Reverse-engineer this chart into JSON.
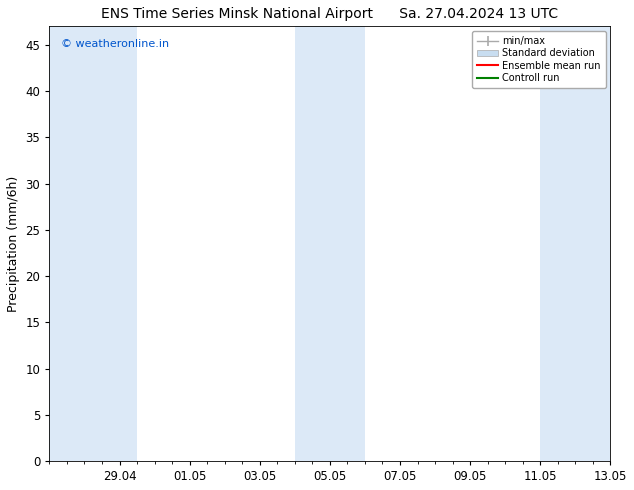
{
  "title_left": "ENS Time Series Minsk National Airport",
  "title_right": "Sa. 27.04.2024 13 UTC",
  "ylabel": "Precipitation (mm/6h)",
  "ylim": [
    0,
    47
  ],
  "yticks": [
    0,
    5,
    10,
    15,
    20,
    25,
    30,
    35,
    40,
    45
  ],
  "watermark": "© weatheronline.in",
  "watermark_color": "#0055cc",
  "background_color": "#ffffff",
  "plot_bg_color": "#ffffff",
  "shaded_bands": [
    {
      "xstart": 0.0,
      "xend": 1.5,
      "color": "#dce9f7"
    },
    {
      "xstart": 1.5,
      "xend": 2.5,
      "color": "#dce9f7"
    },
    {
      "xstart": 7.0,
      "xend": 8.0,
      "color": "#dce9f7"
    },
    {
      "xstart": 8.0,
      "xend": 9.0,
      "color": "#dce9f7"
    },
    {
      "xstart": 14.0,
      "xend": 15.0,
      "color": "#dce9f7"
    },
    {
      "xstart": 15.0,
      "xend": 16.0,
      "color": "#dce9f7"
    }
  ],
  "x_tick_labels": [
    "29.04",
    "01.05",
    "03.05",
    "05.05",
    "07.05",
    "09.05",
    "11.05",
    "13.05"
  ],
  "x_tick_positions": [
    2,
    4,
    6,
    8,
    10,
    12,
    14,
    16
  ],
  "xmin": 0,
  "xmax": 16,
  "legend_labels": [
    "min/max",
    "Standard deviation",
    "Ensemble mean run",
    "Controll run"
  ],
  "legend_colors_line": [
    "#999999",
    "#c8ddf0",
    "#ff0000",
    "#008000"
  ],
  "title_fontsize": 10,
  "axis_fontsize": 9,
  "tick_fontsize": 8.5
}
